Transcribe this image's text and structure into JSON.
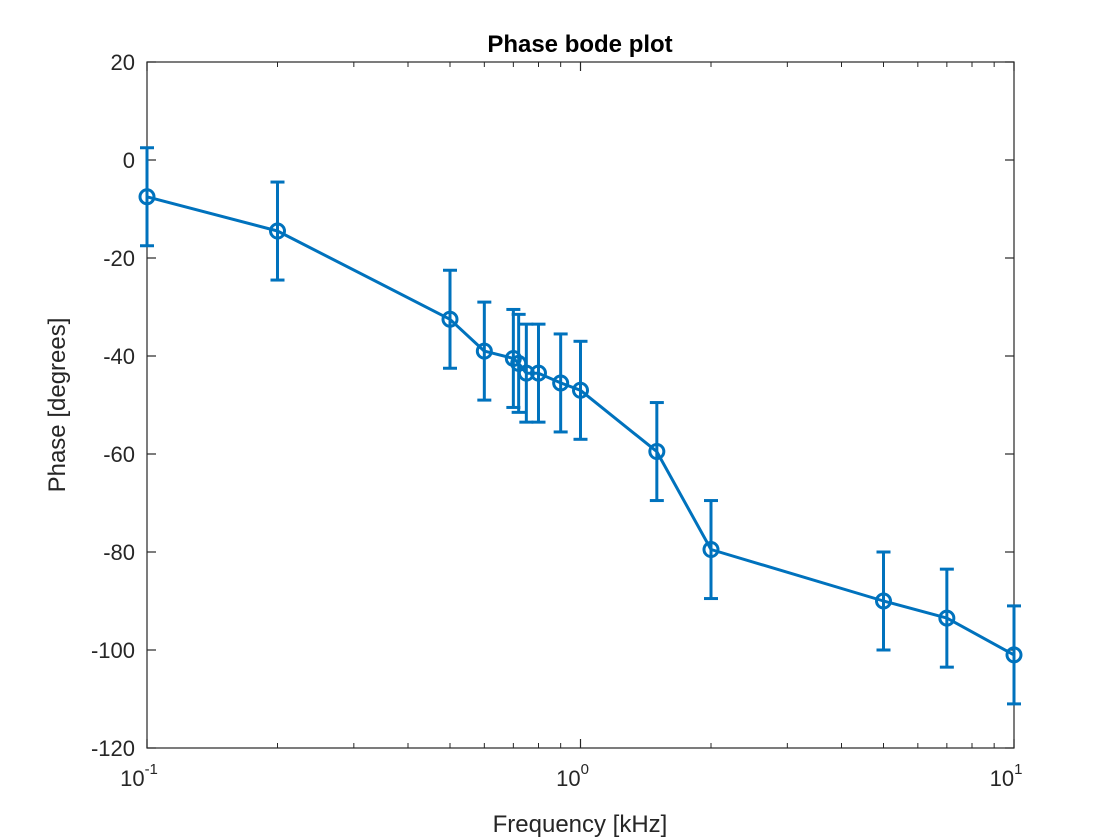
{
  "chart_data": {
    "type": "line",
    "title": "Phase bode plot",
    "xlabel": "Frequency [kHz]",
    "ylabel": "Phase [degrees]",
    "xscale": "log",
    "xlim": [
      0.1,
      10
    ],
    "ylim": [
      -120,
      20
    ],
    "grid": false,
    "legend": "none",
    "x_ticks": [
      {
        "base": "10",
        "exp": "-1",
        "value": 0.1
      },
      {
        "base": "10",
        "exp": "0",
        "value": 1
      },
      {
        "base": "10",
        "exp": "1",
        "value": 10
      }
    ],
    "y_ticks": [
      "20",
      "0",
      "-20",
      "-40",
      "-60",
      "-80",
      "-100",
      "-120"
    ],
    "series": [
      {
        "color": "#0072BD",
        "marker": "circle",
        "x": [
          0.1,
          0.2,
          0.5,
          0.6,
          0.7,
          0.72,
          0.75,
          0.8,
          0.9,
          1.0,
          1.5,
          2.0,
          5.0,
          7.0,
          10.0
        ],
        "y": [
          -7.5,
          -14.5,
          -32.5,
          -39.0,
          -40.5,
          -41.5,
          -43.5,
          -43.5,
          -45.5,
          -47.0,
          -59.5,
          -79.5,
          -90.0,
          -93.5,
          -101.0
        ],
        "error": 10
      }
    ]
  }
}
